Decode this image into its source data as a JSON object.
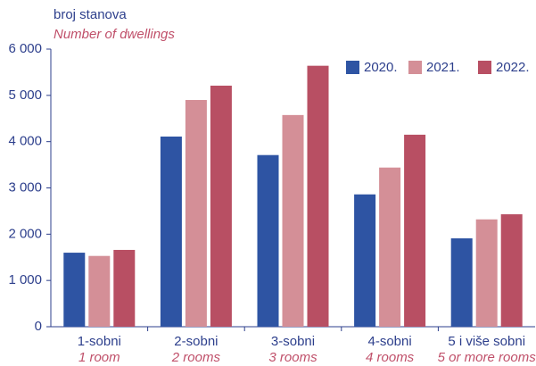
{
  "chart_data": {
    "type": "bar",
    "ylabel": "broj stanova",
    "ylabel_en": "Number of dwellings",
    "categories": [
      "1-sobni",
      "2-sobni",
      "3-sobni",
      "4-sobni",
      "5 i više sobni"
    ],
    "categories_en": [
      "1 room",
      "2 rooms",
      "3 rooms",
      "4 rooms",
      "5 or more rooms"
    ],
    "series": [
      {
        "name": "2020.",
        "color": "#2e54a3",
        "values": [
          1600,
          4110,
          3710,
          2860,
          1910
        ]
      },
      {
        "name": "2021.",
        "color": "#d48f97",
        "values": [
          1530,
          4900,
          4575,
          3440,
          2320
        ]
      },
      {
        "name": "2022.",
        "color": "#b84f63",
        "values": [
          1660,
          5210,
          5640,
          4150,
          2430
        ]
      }
    ],
    "ylim": [
      0,
      6000
    ],
    "yticks": [
      0,
      {
        "value": 1000,
        "label": "1 000"
      },
      {
        "value": 2000,
        "label": "2 000"
      },
      {
        "value": 3000,
        "label": "3 000"
      },
      {
        "value": 4000,
        "label": "4 000"
      },
      {
        "value": 5000,
        "label": "5 000"
      },
      {
        "value": 6000,
        "label": "6 000"
      }
    ],
    "legend": "top-right"
  }
}
